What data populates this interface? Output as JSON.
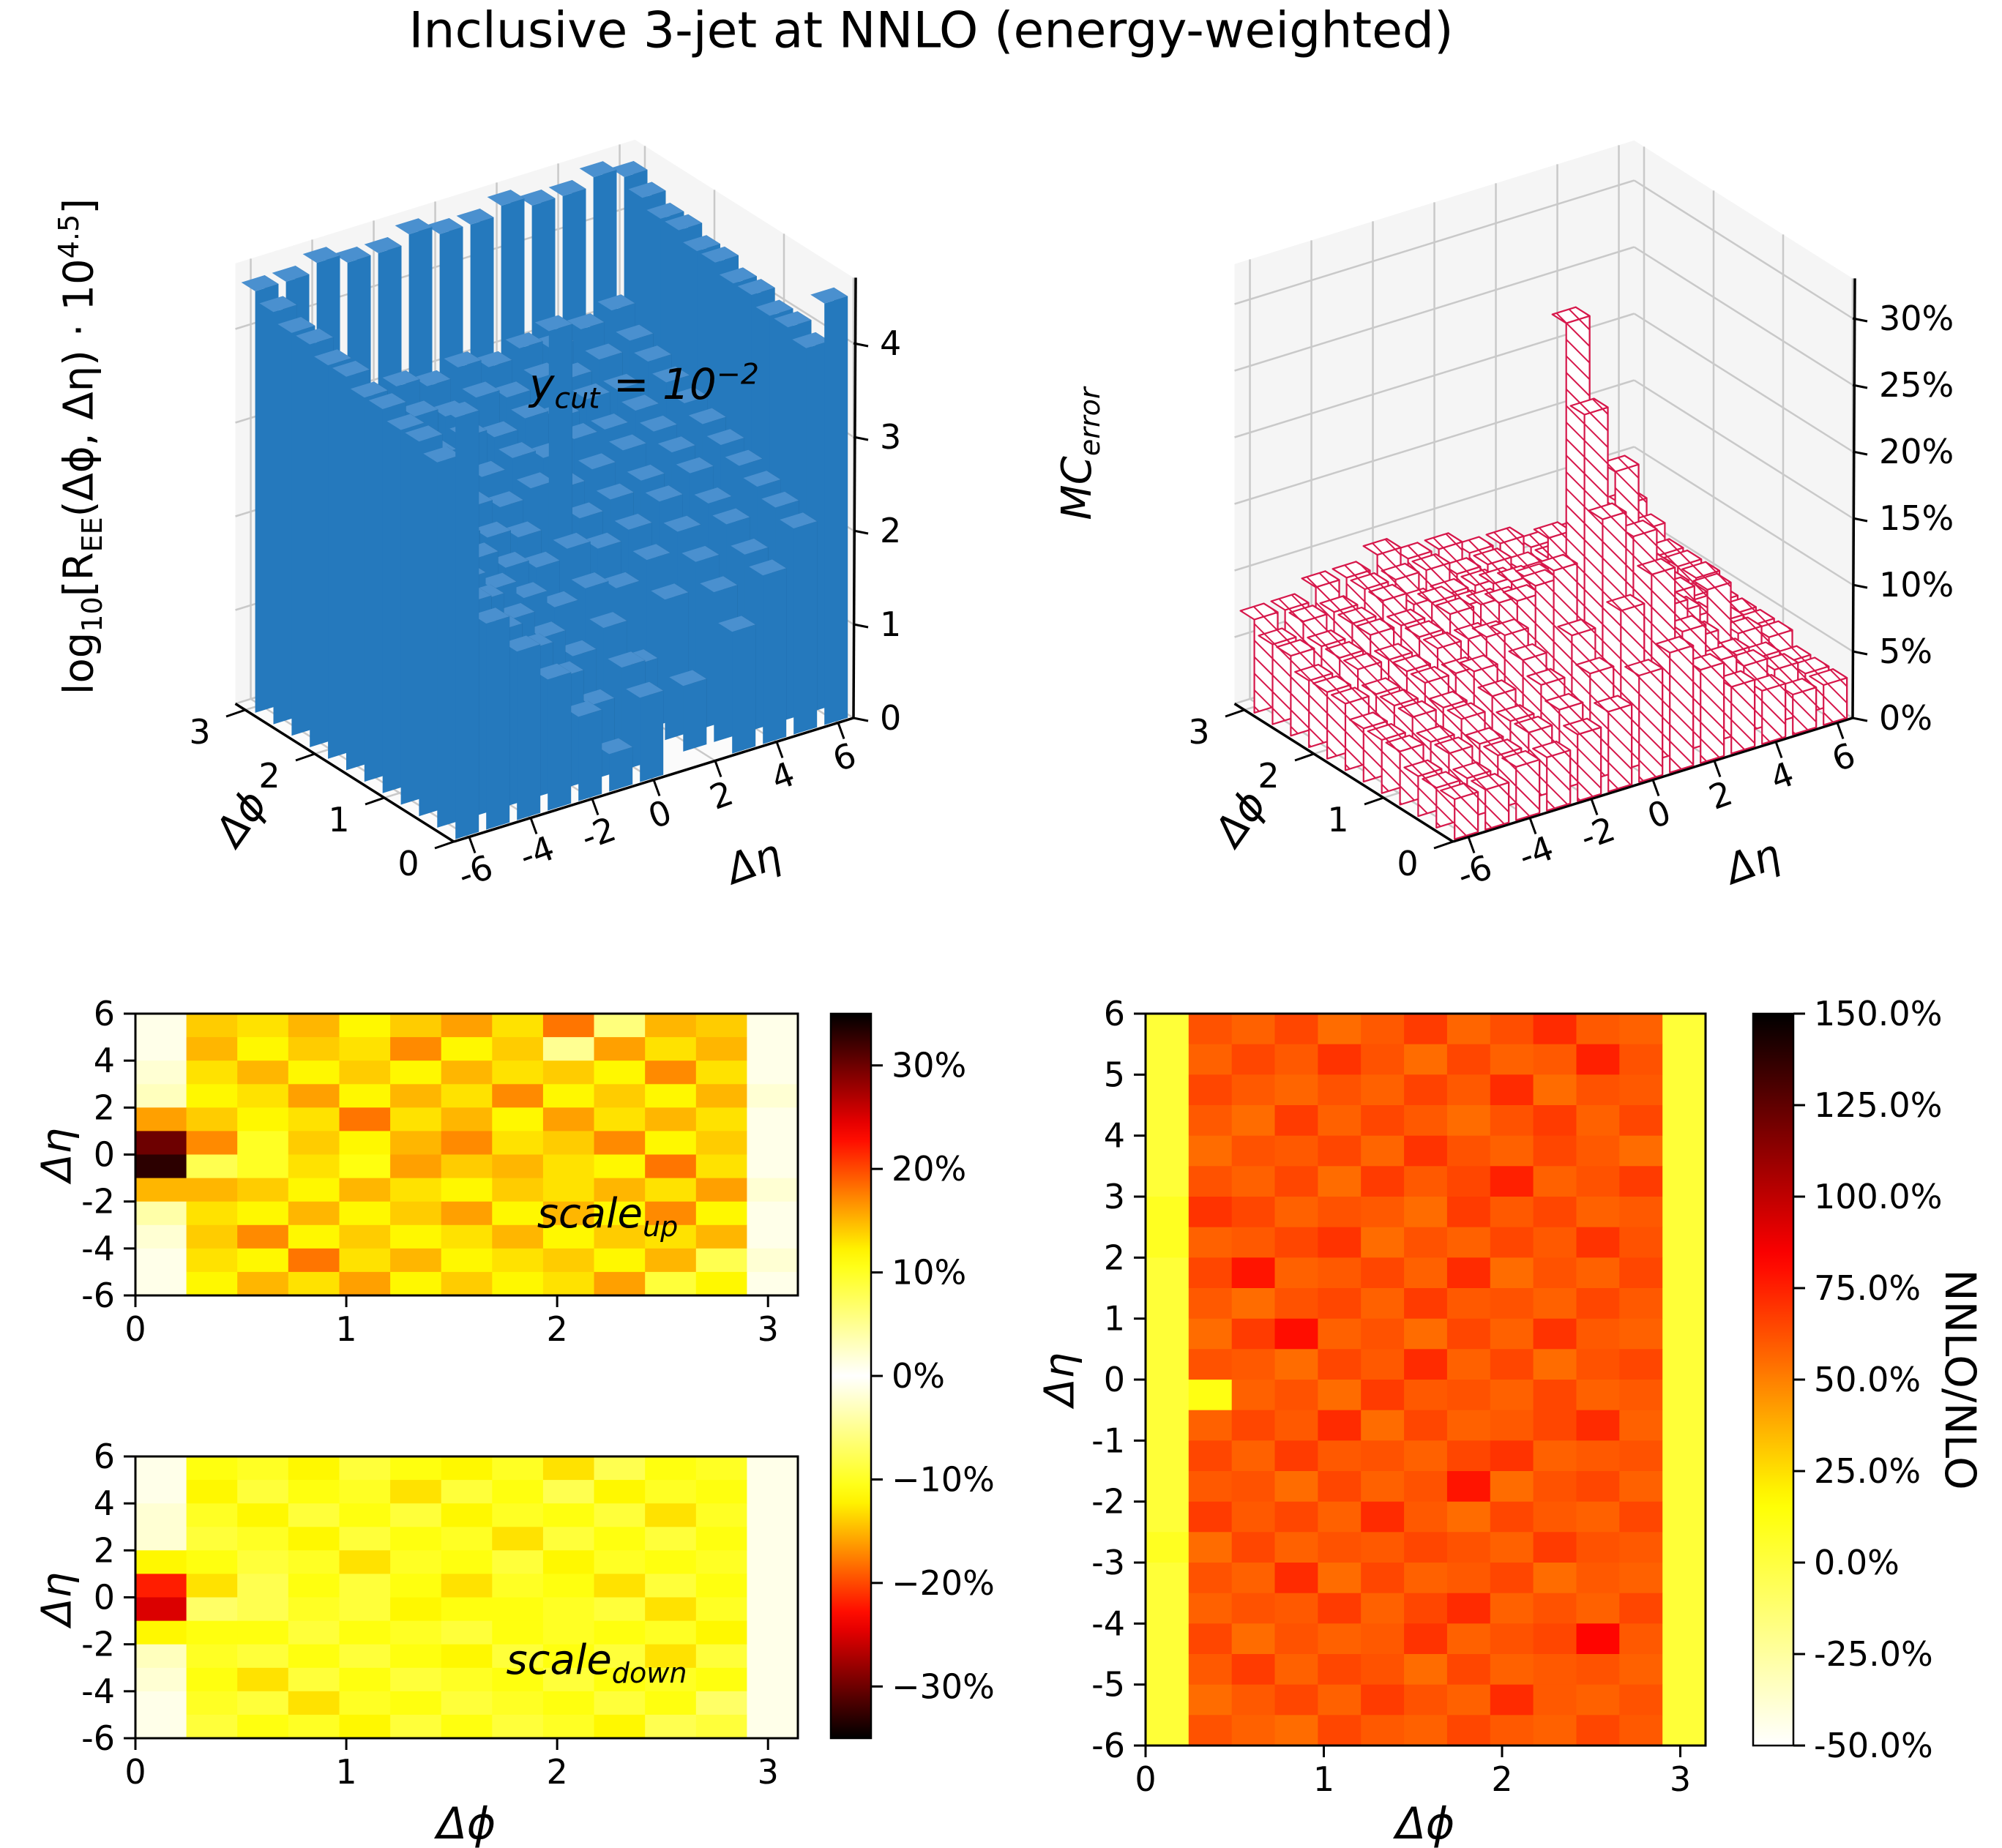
{
  "title": "Inclusive 3-jet at NNLO (energy-weighted)",
  "labels": {
    "eta": "Δη",
    "phi": "Δϕ",
    "ree": {
      "p1": "log",
      "p2": "10",
      "p3": "[R",
      "p4": "EE",
      "p5": "(Δϕ, Δη) · 10",
      "p6": "4.5",
      "p7": "]"
    },
    "mc": {
      "p1": "MC",
      "p2": "error"
    },
    "ratio_cbar": "NNLO/NLO"
  },
  "annotations": {
    "ycut": {
      "p1": "y",
      "p2": "cut",
      "p3": " = 10",
      "p4": "−2"
    },
    "scale_up": {
      "base": "scale",
      "sub": "up"
    },
    "scale_down": {
      "base": "scale",
      "sub": "down"
    }
  },
  "colors": {
    "bar_blue_front": "#2579bd",
    "bar_blue_side": "#114b76",
    "bar_blue_top": "#4a90cf",
    "crimson": "#d6174a",
    "pane": "#f5f5f5",
    "pane_grid": "#c9c9c9"
  },
  "chart_data": [
    {
      "id": "ree_3d",
      "type": "bar3d",
      "title_annotation": "y_cut = 10^-2",
      "xlabel": "Δϕ",
      "ylabel": "Δη",
      "zlabel": "log10[R_EE(Δϕ, Δη) · 10^4.5]",
      "phi_ticks": [
        0,
        1,
        2,
        3
      ],
      "eta_ticks": [
        -6,
        -4,
        -2,
        0,
        2,
        4,
        6
      ],
      "z_ticks": [
        0,
        1,
        2,
        3,
        4
      ],
      "zlim": [
        0,
        4.7
      ],
      "eta_range": [
        -6.5,
        6.5
      ],
      "phi_range": [
        0,
        3.1416
      ],
      "values": [
        [
          4.5,
          2.2,
          1.8,
          1.4,
          0.9,
          0.4,
          0.9,
          0.0,
          0.0,
          1.3,
          1.8,
          2.2,
          4.5
        ],
        [
          3.9,
          2.3,
          1.9,
          1.6,
          1.2,
          0.8,
          1.1,
          0.0,
          0.7,
          1.6,
          1.9,
          2.3,
          3.9
        ],
        [
          4.0,
          2.4,
          2.1,
          1.8,
          1.5,
          1.2,
          1.4,
          0.9,
          1.5,
          1.8,
          2.1,
          2.4,
          4.0
        ],
        [
          4.0,
          2.5,
          2.2,
          2.0,
          1.8,
          1.6,
          1.7,
          1.6,
          1.8,
          2.0,
          2.2,
          2.5,
          4.0
        ],
        [
          4.1,
          2.6,
          2.4,
          2.2,
          2.0,
          1.9,
          2.0,
          1.9,
          2.0,
          2.2,
          2.4,
          2.6,
          4.1
        ],
        [
          4.1,
          2.7,
          2.5,
          2.3,
          2.2,
          2.1,
          4.2,
          2.1,
          2.2,
          2.3,
          2.5,
          2.7,
          4.1
        ],
        [
          4.2,
          2.8,
          2.6,
          2.5,
          2.4,
          2.3,
          2.4,
          2.3,
          2.4,
          2.5,
          2.6,
          2.8,
          4.2
        ],
        [
          4.2,
          2.9,
          2.7,
          2.6,
          2.6,
          2.5,
          2.6,
          2.5,
          2.6,
          2.6,
          2.7,
          2.9,
          4.2
        ],
        [
          4.3,
          3.0,
          2.8,
          2.8,
          2.7,
          2.8,
          2.7,
          2.8,
          2.7,
          2.8,
          2.8,
          3.0,
          4.3
        ],
        [
          4.3,
          3.1,
          3.0,
          2.9,
          3.0,
          2.9,
          3.0,
          2.9,
          3.0,
          2.9,
          3.0,
          3.1,
          4.3
        ],
        [
          4.4,
          3.3,
          3.2,
          3.1,
          3.2,
          3.1,
          3.2,
          3.1,
          3.2,
          3.1,
          3.2,
          3.3,
          4.4
        ],
        [
          4.5,
          4.5,
          4.6,
          4.5,
          4.5,
          4.6,
          4.5,
          4.5,
          4.6,
          4.5,
          4.5,
          4.6,
          4.5
        ]
      ]
    },
    {
      "id": "mc_error_3d",
      "type": "bar3d",
      "xlabel": "Δϕ",
      "ylabel": "Δη",
      "zlabel": "MC_error",
      "phi_ticks": [
        0,
        1,
        2,
        3
      ],
      "eta_ticks": [
        -6,
        -4,
        -2,
        0,
        2,
        4,
        6
      ],
      "z_tick_labels": [
        "0%",
        "5%",
        "10%",
        "15%",
        "20%",
        "25%",
        "30%"
      ],
      "z_ticks_pct": [
        0,
        5,
        10,
        15,
        20,
        25,
        30
      ],
      "zlim_pct": [
        0,
        33
      ],
      "hatch": true,
      "values_pct": [
        [
          3,
          3,
          4,
          4,
          5,
          6,
          8,
          9,
          7,
          5,
          4,
          3,
          3
        ],
        [
          3,
          3,
          4,
          5,
          6,
          8,
          12,
          14,
          9,
          6,
          5,
          4,
          3
        ],
        [
          3,
          4,
          4,
          5,
          7,
          10,
          18,
          16,
          10,
          7,
          5,
          4,
          3
        ],
        [
          4,
          4,
          5,
          6,
          8,
          14,
          25,
          20,
          12,
          8,
          9,
          5,
          4
        ],
        [
          4,
          5,
          5,
          7,
          9,
          12,
          31,
          15,
          10,
          7,
          6,
          5,
          4
        ],
        [
          4,
          5,
          6,
          6,
          8,
          10,
          14,
          12,
          8,
          8,
          7,
          5,
          4
        ],
        [
          5,
          5,
          6,
          7,
          7,
          9,
          10,
          9,
          7,
          6,
          5,
          5,
          4
        ],
        [
          5,
          6,
          6,
          7,
          8,
          8,
          9,
          8,
          7,
          6,
          5,
          5,
          5
        ],
        [
          5,
          6,
          7,
          7,
          8,
          7,
          8,
          7,
          6,
          6,
          5,
          5,
          5
        ],
        [
          6,
          6,
          7,
          8,
          7,
          7,
          7,
          6,
          6,
          5,
          5,
          6,
          5
        ],
        [
          6,
          7,
          7,
          8,
          8,
          8,
          7,
          7,
          6,
          6,
          6,
          6,
          6
        ],
        [
          7,
          7,
          8,
          8,
          9,
          8,
          8,
          7,
          7,
          6,
          6,
          7,
          7
        ]
      ]
    },
    {
      "id": "scale_up",
      "type": "heatmap",
      "annotation": "scale_up",
      "xlabel": "Δϕ",
      "ylabel": "Δη",
      "x_ticks": [
        0,
        1,
        2,
        3
      ],
      "y_ticks": [
        6,
        4,
        2,
        0,
        -2,
        -4,
        -6
      ],
      "x_range": [
        0,
        3.1416
      ],
      "y_range": [
        -6,
        6
      ],
      "vmin_pct": -35,
      "vmax_pct": 35,
      "values_pct": [
        [
          1,
          14,
          13,
          15,
          12,
          14,
          16,
          13,
          18,
          6,
          15,
          14,
          1
        ],
        [
          1,
          15,
          12,
          14,
          13,
          17,
          12,
          14,
          5,
          16,
          13,
          15,
          1
        ],
        [
          2,
          13,
          15,
          12,
          14,
          12,
          15,
          13,
          14,
          12,
          17,
          13,
          1
        ],
        [
          3,
          12,
          13,
          16,
          12,
          15,
          13,
          17,
          12,
          14,
          12,
          15,
          2
        ],
        [
          16,
          14,
          12,
          13,
          18,
          13,
          15,
          12,
          16,
          13,
          15,
          13,
          1
        ],
        [
          30,
          17,
          10,
          14,
          12,
          15,
          17,
          13,
          14,
          17,
          12,
          14,
          1
        ],
        [
          33,
          8,
          10,
          13,
          11,
          16,
          14,
          15,
          13,
          12,
          18,
          13,
          1
        ],
        [
          15,
          15,
          14,
          12,
          15,
          13,
          12,
          14,
          13,
          15,
          13,
          16,
          2
        ],
        [
          4,
          13,
          12,
          15,
          12,
          14,
          16,
          12,
          15,
          12,
          17,
          12,
          1
        ],
        [
          2,
          14,
          17,
          12,
          14,
          12,
          13,
          15,
          12,
          14,
          13,
          15,
          1
        ],
        [
          1,
          13,
          12,
          18,
          13,
          15,
          12,
          13,
          14,
          12,
          15,
          8,
          2
        ],
        [
          1,
          12,
          15,
          13,
          16,
          12,
          14,
          12,
          13,
          16,
          9,
          12,
          1
        ]
      ]
    },
    {
      "id": "scale_down",
      "type": "heatmap",
      "annotation": "scale_down",
      "xlabel": "Δϕ",
      "ylabel": "Δη",
      "x_ticks": [
        0,
        1,
        2,
        3
      ],
      "y_ticks": [
        6,
        4,
        2,
        0,
        -2,
        -4,
        -6
      ],
      "x_range": [
        0,
        3.1416
      ],
      "y_range": [
        -6,
        6
      ],
      "vmin_pct": -35,
      "vmax_pct": 35,
      "colorbar_ticks": [
        "30%",
        "20%",
        "10%",
        "0%",
        "−10%",
        "−20%",
        "−30%"
      ],
      "colorbar_tick_values": [
        30,
        20,
        10,
        0,
        -10,
        -20,
        -30
      ],
      "values_pct": [
        [
          1,
          11,
          10,
          12,
          9,
          11,
          12,
          10,
          13,
          8,
          11,
          10,
          1
        ],
        [
          1,
          12,
          9,
          11,
          10,
          13,
          9,
          11,
          8,
          12,
          10,
          11,
          1
        ],
        [
          2,
          10,
          12,
          9,
          11,
          9,
          12,
          10,
          11,
          9,
          13,
          10,
          1
        ],
        [
          2,
          9,
          10,
          12,
          9,
          11,
          10,
          13,
          9,
          11,
          9,
          11,
          1
        ],
        [
          12,
          11,
          9,
          10,
          13,
          10,
          11,
          9,
          12,
          10,
          11,
          10,
          1
        ],
        [
          22,
          13,
          8,
          11,
          9,
          11,
          13,
          10,
          11,
          13,
          9,
          11,
          1
        ],
        [
          25,
          7,
          8,
          10,
          9,
          12,
          11,
          11,
          10,
          9,
          13,
          10,
          1
        ],
        [
          12,
          11,
          11,
          9,
          11,
          10,
          9,
          11,
          10,
          11,
          10,
          12,
          1
        ],
        [
          3,
          10,
          9,
          11,
          9,
          11,
          12,
          9,
          11,
          9,
          13,
          9,
          1
        ],
        [
          2,
          11,
          13,
          9,
          11,
          9,
          10,
          11,
          9,
          11,
          10,
          11,
          1
        ],
        [
          1,
          10,
          9,
          13,
          10,
          11,
          9,
          10,
          11,
          9,
          11,
          7,
          1
        ],
        [
          1,
          9,
          11,
          10,
          12,
          9,
          11,
          9,
          10,
          12,
          8,
          9,
          1
        ]
      ]
    },
    {
      "id": "nnlo_nlo",
      "type": "heatmap",
      "xlabel": "Δϕ",
      "ylabel": "Δη",
      "colorbar_label": "NNLO/NLO",
      "x_ticks": [
        0,
        1,
        2,
        3
      ],
      "y_ticks": [
        6,
        5,
        4,
        3,
        2,
        1,
        0,
        -1,
        -2,
        -3,
        -4,
        -5,
        -6
      ],
      "x_range": [
        0,
        3.1416
      ],
      "y_range": [
        -6,
        6
      ],
      "vmin_pct": -50,
      "vmax_pct": 150,
      "colorbar_ticks": [
        "150.0%",
        "125.0%",
        "100.0%",
        "75.0%",
        "50.0%",
        "25.0%",
        "0.0%",
        "-25.0%",
        "-50.0%"
      ],
      "colorbar_tick_values": [
        150,
        125,
        100,
        75,
        50,
        25,
        0,
        -25,
        -50
      ],
      "values_pct": [
        [
          2,
          62,
          58,
          65,
          55,
          60,
          68,
          57,
          63,
          72,
          60,
          58,
          2
        ],
        [
          2,
          58,
          65,
          60,
          70,
          62,
          55,
          65,
          58,
          60,
          75,
          62,
          2
        ],
        [
          2,
          65,
          60,
          57,
          62,
          58,
          66,
          60,
          72,
          55,
          62,
          60,
          2
        ],
        [
          2,
          60,
          55,
          68,
          58,
          65,
          60,
          55,
          62,
          68,
          58,
          65,
          2
        ],
        [
          2,
          55,
          62,
          60,
          65,
          57,
          70,
          62,
          58,
          65,
          60,
          55,
          2
        ],
        [
          2,
          62,
          58,
          65,
          55,
          68,
          60,
          65,
          75,
          58,
          62,
          68,
          2
        ],
        [
          8,
          70,
          65,
          58,
          62,
          60,
          55,
          68,
          60,
          65,
          58,
          60,
          2
        ],
        [
          8,
          58,
          60,
          65,
          70,
          55,
          62,
          58,
          65,
          60,
          70,
          62,
          2
        ],
        [
          2,
          65,
          78,
          58,
          60,
          65,
          58,
          72,
          55,
          62,
          58,
          65,
          2
        ],
        [
          2,
          60,
          55,
          62,
          65,
          58,
          68,
          60,
          62,
          58,
          65,
          60,
          2
        ],
        [
          2,
          55,
          68,
          80,
          58,
          62,
          55,
          65,
          58,
          70,
          60,
          58,
          2
        ],
        [
          2,
          62,
          60,
          55,
          65,
          60,
          72,
          58,
          65,
          55,
          62,
          65,
          2
        ],
        [
          2,
          12,
          58,
          62,
          55,
          68,
          60,
          62,
          58,
          65,
          58,
          60,
          2
        ],
        [
          2,
          58,
          65,
          60,
          72,
          55,
          65,
          58,
          60,
          65,
          72,
          58,
          2
        ],
        [
          2,
          65,
          58,
          68,
          60,
          62,
          58,
          65,
          70,
          58,
          60,
          62,
          2
        ],
        [
          2,
          60,
          62,
          55,
          65,
          58,
          62,
          78,
          55,
          62,
          65,
          58,
          2
        ],
        [
          2,
          68,
          60,
          65,
          58,
          72,
          60,
          55,
          65,
          60,
          58,
          65,
          2
        ],
        [
          8,
          55,
          65,
          58,
          62,
          60,
          65,
          62,
          58,
          68,
          62,
          60,
          2
        ],
        [
          2,
          62,
          58,
          72,
          55,
          65,
          58,
          60,
          65,
          55,
          60,
          58,
          2
        ],
        [
          2,
          58,
          62,
          60,
          68,
          58,
          65,
          72,
          58,
          62,
          58,
          65,
          2
        ],
        [
          2,
          65,
          55,
          62,
          58,
          60,
          70,
          58,
          62,
          65,
          82,
          60,
          2
        ],
        [
          2,
          60,
          68,
          58,
          65,
          62,
          55,
          65,
          58,
          60,
          62,
          58,
          2
        ],
        [
          2,
          55,
          60,
          65,
          58,
          68,
          62,
          58,
          72,
          60,
          58,
          62,
          2
        ],
        [
          2,
          62,
          58,
          55,
          65,
          60,
          58,
          65,
          60,
          58,
          65,
          60,
          2
        ]
      ]
    }
  ]
}
